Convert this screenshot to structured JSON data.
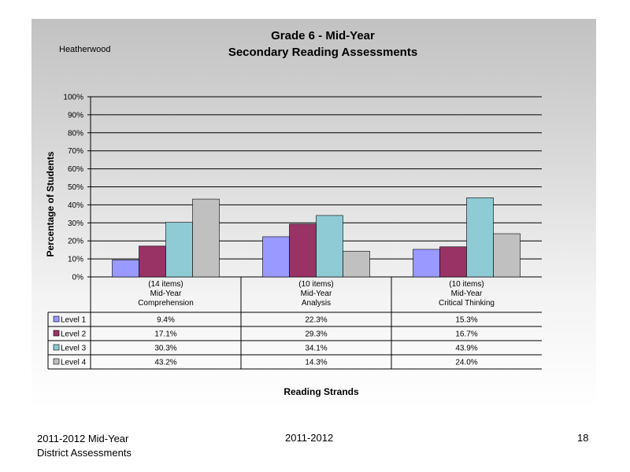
{
  "header": {
    "school": "Heatherwood",
    "title_line1": "Grade 6 - Mid-Year",
    "title_line2": "Secondary Reading Assessments"
  },
  "footer": {
    "left_line1": "2011-2012  Mid-Year",
    "left_line2": "District Assessments",
    "center": "2011-2012",
    "page_number": "18"
  },
  "chart_data": {
    "type": "bar",
    "title": "Grade 6 - Mid-Year Secondary Reading Assessments",
    "xlabel": "Reading Strands",
    "ylabel": "Percentage of Students",
    "ylim": [
      0,
      100
    ],
    "yticks": [
      "0%",
      "10%",
      "20%",
      "30%",
      "40%",
      "50%",
      "60%",
      "70%",
      "80%",
      "90%",
      "100%"
    ],
    "grid": true,
    "legend": "data table",
    "categories": [
      [
        "(14 items)",
        "Mid-Year",
        "Comprehension"
      ],
      [
        "(10 items)",
        "Mid-Year",
        "Analysis"
      ],
      [
        "(10 items)",
        "Mid-Year",
        "Critical Thinking"
      ]
    ],
    "series": [
      {
        "name": "Level 1",
        "color": "#9999ff",
        "values": [
          9.4,
          22.3,
          15.3
        ],
        "labels": [
          "9.4%",
          "22.3%",
          "15.3%"
        ]
      },
      {
        "name": "Level 2",
        "color": "#993366",
        "values": [
          17.1,
          29.3,
          16.7
        ],
        "labels": [
          "17.1%",
          "29.3%",
          "16.7%"
        ]
      },
      {
        "name": "Level 3",
        "color": "#8fcbd4",
        "values": [
          30.3,
          34.1,
          43.9
        ],
        "labels": [
          "30.3%",
          "34.1%",
          "43.9%"
        ]
      },
      {
        "name": "Level 4",
        "color": "#c0c0c0",
        "values": [
          43.2,
          14.3,
          24.0
        ],
        "labels": [
          "43.2%",
          "14.3%",
          "24.0%"
        ]
      }
    ]
  }
}
